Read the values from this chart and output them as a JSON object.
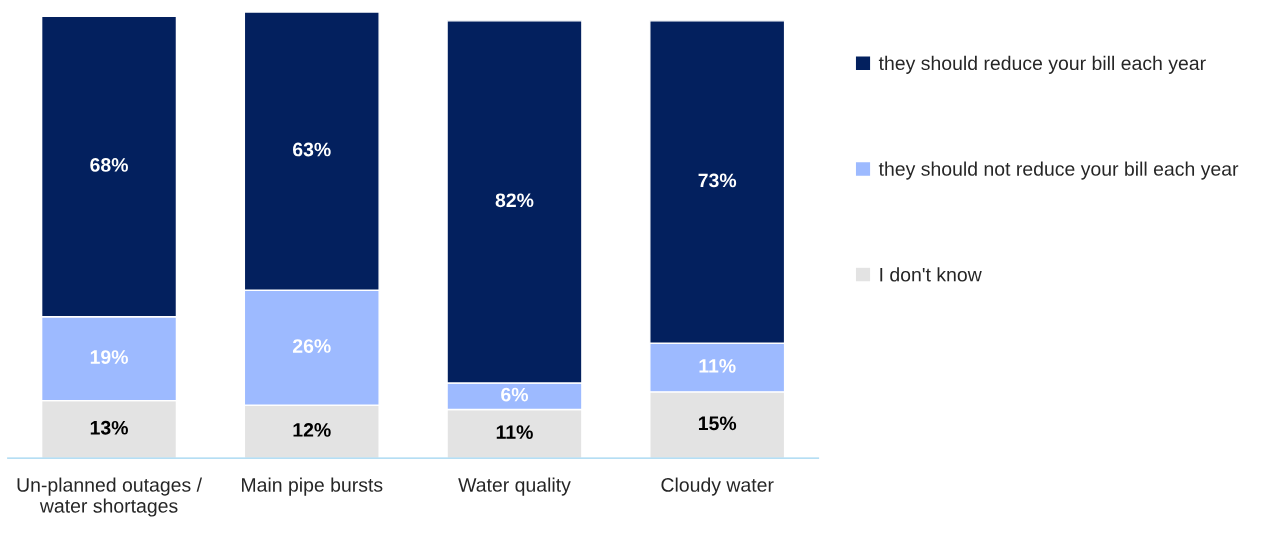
{
  "chart_data": {
    "type": "bar",
    "stacked": true,
    "legend": "right",
    "grid": false,
    "categories": [
      "Un-planned outages / water shortages",
      "Main pipe bursts",
      "Water quality",
      "Cloudy water"
    ],
    "series": [
      {
        "name": "I don't know",
        "color": "#e3e3e3",
        "values": [
          13,
          12,
          11,
          15
        ],
        "value_labels": [
          "13%",
          "12%",
          "11%",
          "15%"
        ]
      },
      {
        "name": "they should not reduce your bill each year",
        "color": "#9dbaff",
        "values": [
          19,
          26,
          6,
          11
        ],
        "value_labels": [
          "19%",
          "26%",
          "6%",
          "11%"
        ]
      },
      {
        "name": "they should reduce your bill each year",
        "color": "#03205e",
        "values": [
          68,
          63,
          82,
          73
        ],
        "value_labels": [
          "68%",
          "63%",
          "82%",
          "73%"
        ]
      }
    ]
  }
}
